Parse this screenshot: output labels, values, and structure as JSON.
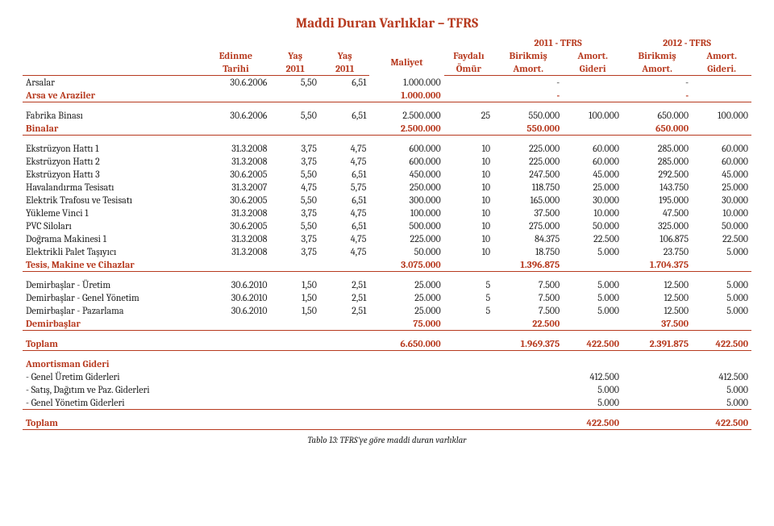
{
  "colors": {
    "accent": "#b73a1f",
    "text": "#222222",
    "bg": "#ffffff"
  },
  "title": "Maddi Duran Varlıklar – TFRS",
  "caption": "Tablo 13: TFRS'ye göre maddi duran varlıklar",
  "header": {
    "year11": "2011 - TFRS",
    "year12": "2012 - TFRS",
    "edinme1": "Edinme",
    "edinme2": "Tarihi",
    "yas1a": "Yaş",
    "yas1b": "2011",
    "yas2a": "Yaş",
    "yas2b": "2011",
    "maliyet": "Maliyet",
    "omur1": "Faydalı",
    "omur2": "Ömür",
    "ba1": "Birikmiş",
    "ba2": "Amort.",
    "ag1": "Amort.",
    "ag2": "Gideri",
    "ag2b": "Gideri."
  },
  "rows": [
    {
      "name": "Arsalar",
      "date": "30.6.2006",
      "y1": "5,50",
      "y2": "6,51",
      "m": "1.000.000",
      "o": "",
      "ba11": "-",
      "ag11": "",
      "ba12": "-",
      "ag12": ""
    },
    {
      "name": "Arsa ve Araziler",
      "m": "1.000.000",
      "ba11": "-",
      "ba12": "-",
      "subtotal": true,
      "accent": true,
      "end": true
    },
    {
      "name": "Fabrika Binası",
      "date": "30.6.2006",
      "y1": "5,50",
      "y2": "6,51",
      "m": "2.500.000",
      "o": "25",
      "ba11": "550.000",
      "ag11": "100.000",
      "ba12": "650.000",
      "ag12": "100.000",
      "pretop": true
    },
    {
      "name": "Binalar",
      "m": "2.500.000",
      "ba11": "550.000",
      "ba12": "650.000",
      "subtotal": true,
      "accent": true,
      "end": true
    },
    {
      "name": "Ekstrüzyon Hattı 1",
      "date": "31.3.2008",
      "y1": "3,75",
      "y2": "4,75",
      "m": "600.000",
      "o": "10",
      "ba11": "225.000",
      "ag11": "60.000",
      "ba12": "285.000",
      "ag12": "60.000",
      "pretop": true
    },
    {
      "name": "Ekstrüzyon Hattı 2",
      "date": "31.3.2008",
      "y1": "3,75",
      "y2": "4,75",
      "m": "600.000",
      "o": "10",
      "ba11": "225.000",
      "ag11": "60.000",
      "ba12": "285.000",
      "ag12": "60.000"
    },
    {
      "name": "Ekstrüzyon Hattı 3",
      "date": "30.6.2005",
      "y1": "5,50",
      "y2": "6,51",
      "m": "450.000",
      "o": "10",
      "ba11": "247.500",
      "ag11": "45.000",
      "ba12": "292.500",
      "ag12": "45.000"
    },
    {
      "name": "Havalandırma Tesisatı",
      "date": "31.3.2007",
      "y1": "4,75",
      "y2": "5,75",
      "m": "250.000",
      "o": "10",
      "ba11": "118.750",
      "ag11": "25.000",
      "ba12": "143.750",
      "ag12": "25.000"
    },
    {
      "name": "Elektrik Trafosu ve Tesisatı",
      "date": "30.6.2005",
      "y1": "5,50",
      "y2": "6,51",
      "m": "300.000",
      "o": "10",
      "ba11": "165.000",
      "ag11": "30.000",
      "ba12": "195.000",
      "ag12": "30.000"
    },
    {
      "name": "Yükleme Vinci 1",
      "date": "31.3.2008",
      "y1": "3,75",
      "y2": "4,75",
      "m": "100.000",
      "o": "10",
      "ba11": "37.500",
      "ag11": "10.000",
      "ba12": "47.500",
      "ag12": "10.000"
    },
    {
      "name": "PVC Siloları",
      "date": "30.6.2005",
      "y1": "5,50",
      "y2": "6,51",
      "m": "500.000",
      "o": "10",
      "ba11": "275.000",
      "ag11": "50.000",
      "ba12": "325.000",
      "ag12": "50.000"
    },
    {
      "name": "Doğrama Makinesi 1",
      "date": "31.3.2008",
      "y1": "3,75",
      "y2": "4,75",
      "m": "225.000",
      "o": "10",
      "ba11": "84.375",
      "ag11": "22.500",
      "ba12": "106.875",
      "ag12": "22.500"
    },
    {
      "name": "Elektrikli Palet Taşıyıcı",
      "date": "31.3.2008",
      "y1": "3,75",
      "y2": "4,75",
      "m": "50.000",
      "o": "10",
      "ba11": "18.750",
      "ag11": "5.000",
      "ba12": "23.750",
      "ag12": "5.000"
    },
    {
      "name": "Tesis, Makine ve Cihazlar",
      "m": "3.075.000",
      "ba11": "1.396.875",
      "ba12": "1.704.375",
      "subtotal": true,
      "accent": true,
      "end": true
    },
    {
      "name": "Demirbaşlar - Üretim",
      "date": "30.6.2010",
      "y1": "1,50",
      "y2": "2,51",
      "m": "25.000",
      "o": "5",
      "ba11": "7.500",
      "ag11": "5.000",
      "ba12": "12.500",
      "ag12": "5.000",
      "pretop": true
    },
    {
      "name": "Demirbaşlar - Genel Yönetim",
      "date": "30.6.2010",
      "y1": "1,50",
      "y2": "2,51",
      "m": "25.000",
      "o": "5",
      "ba11": "7.500",
      "ag11": "5.000",
      "ba12": "12.500",
      "ag12": "5.000"
    },
    {
      "name": "Demirbaşlar - Pazarlama",
      "date": "30.6.2010",
      "y1": "1,50",
      "y2": "2,51",
      "m": "25.000",
      "o": "5",
      "ba11": "7.500",
      "ag11": "5.000",
      "ba12": "12.500",
      "ag12": "5.000"
    },
    {
      "name": "Demirbaşlar",
      "m": "75.000",
      "ba11": "22.500",
      "ba12": "37.500",
      "subtotal": true,
      "accent": true,
      "end": true
    },
    {
      "name": "Toplam",
      "m": "6.650.000",
      "ba11": "1.969.375",
      "ag11": "422.500",
      "ba12": "2.391.875",
      "ag12": "422.500",
      "grand": true,
      "accent": true,
      "end": true,
      "pretop": true
    },
    {
      "name": "Amortisman Gideri",
      "accent": true,
      "subtotal": true,
      "pretop": true
    },
    {
      "name": " - Genel Üretim Giderleri",
      "ag11": "412.500",
      "ag12": "412.500"
    },
    {
      "name": " - Satış, Dağıtım ve Paz. Giderleri",
      "ag11": "5.000",
      "ag12": "5.000"
    },
    {
      "name": " - Genel Yönetim Giderleri",
      "ag11": "5.000",
      "ag12": "5.000",
      "end": true
    },
    {
      "name": "Toplam",
      "ag11": "422.500",
      "ag12": "422.500",
      "grand": true,
      "accent": true,
      "end": true,
      "pretop": true
    }
  ]
}
